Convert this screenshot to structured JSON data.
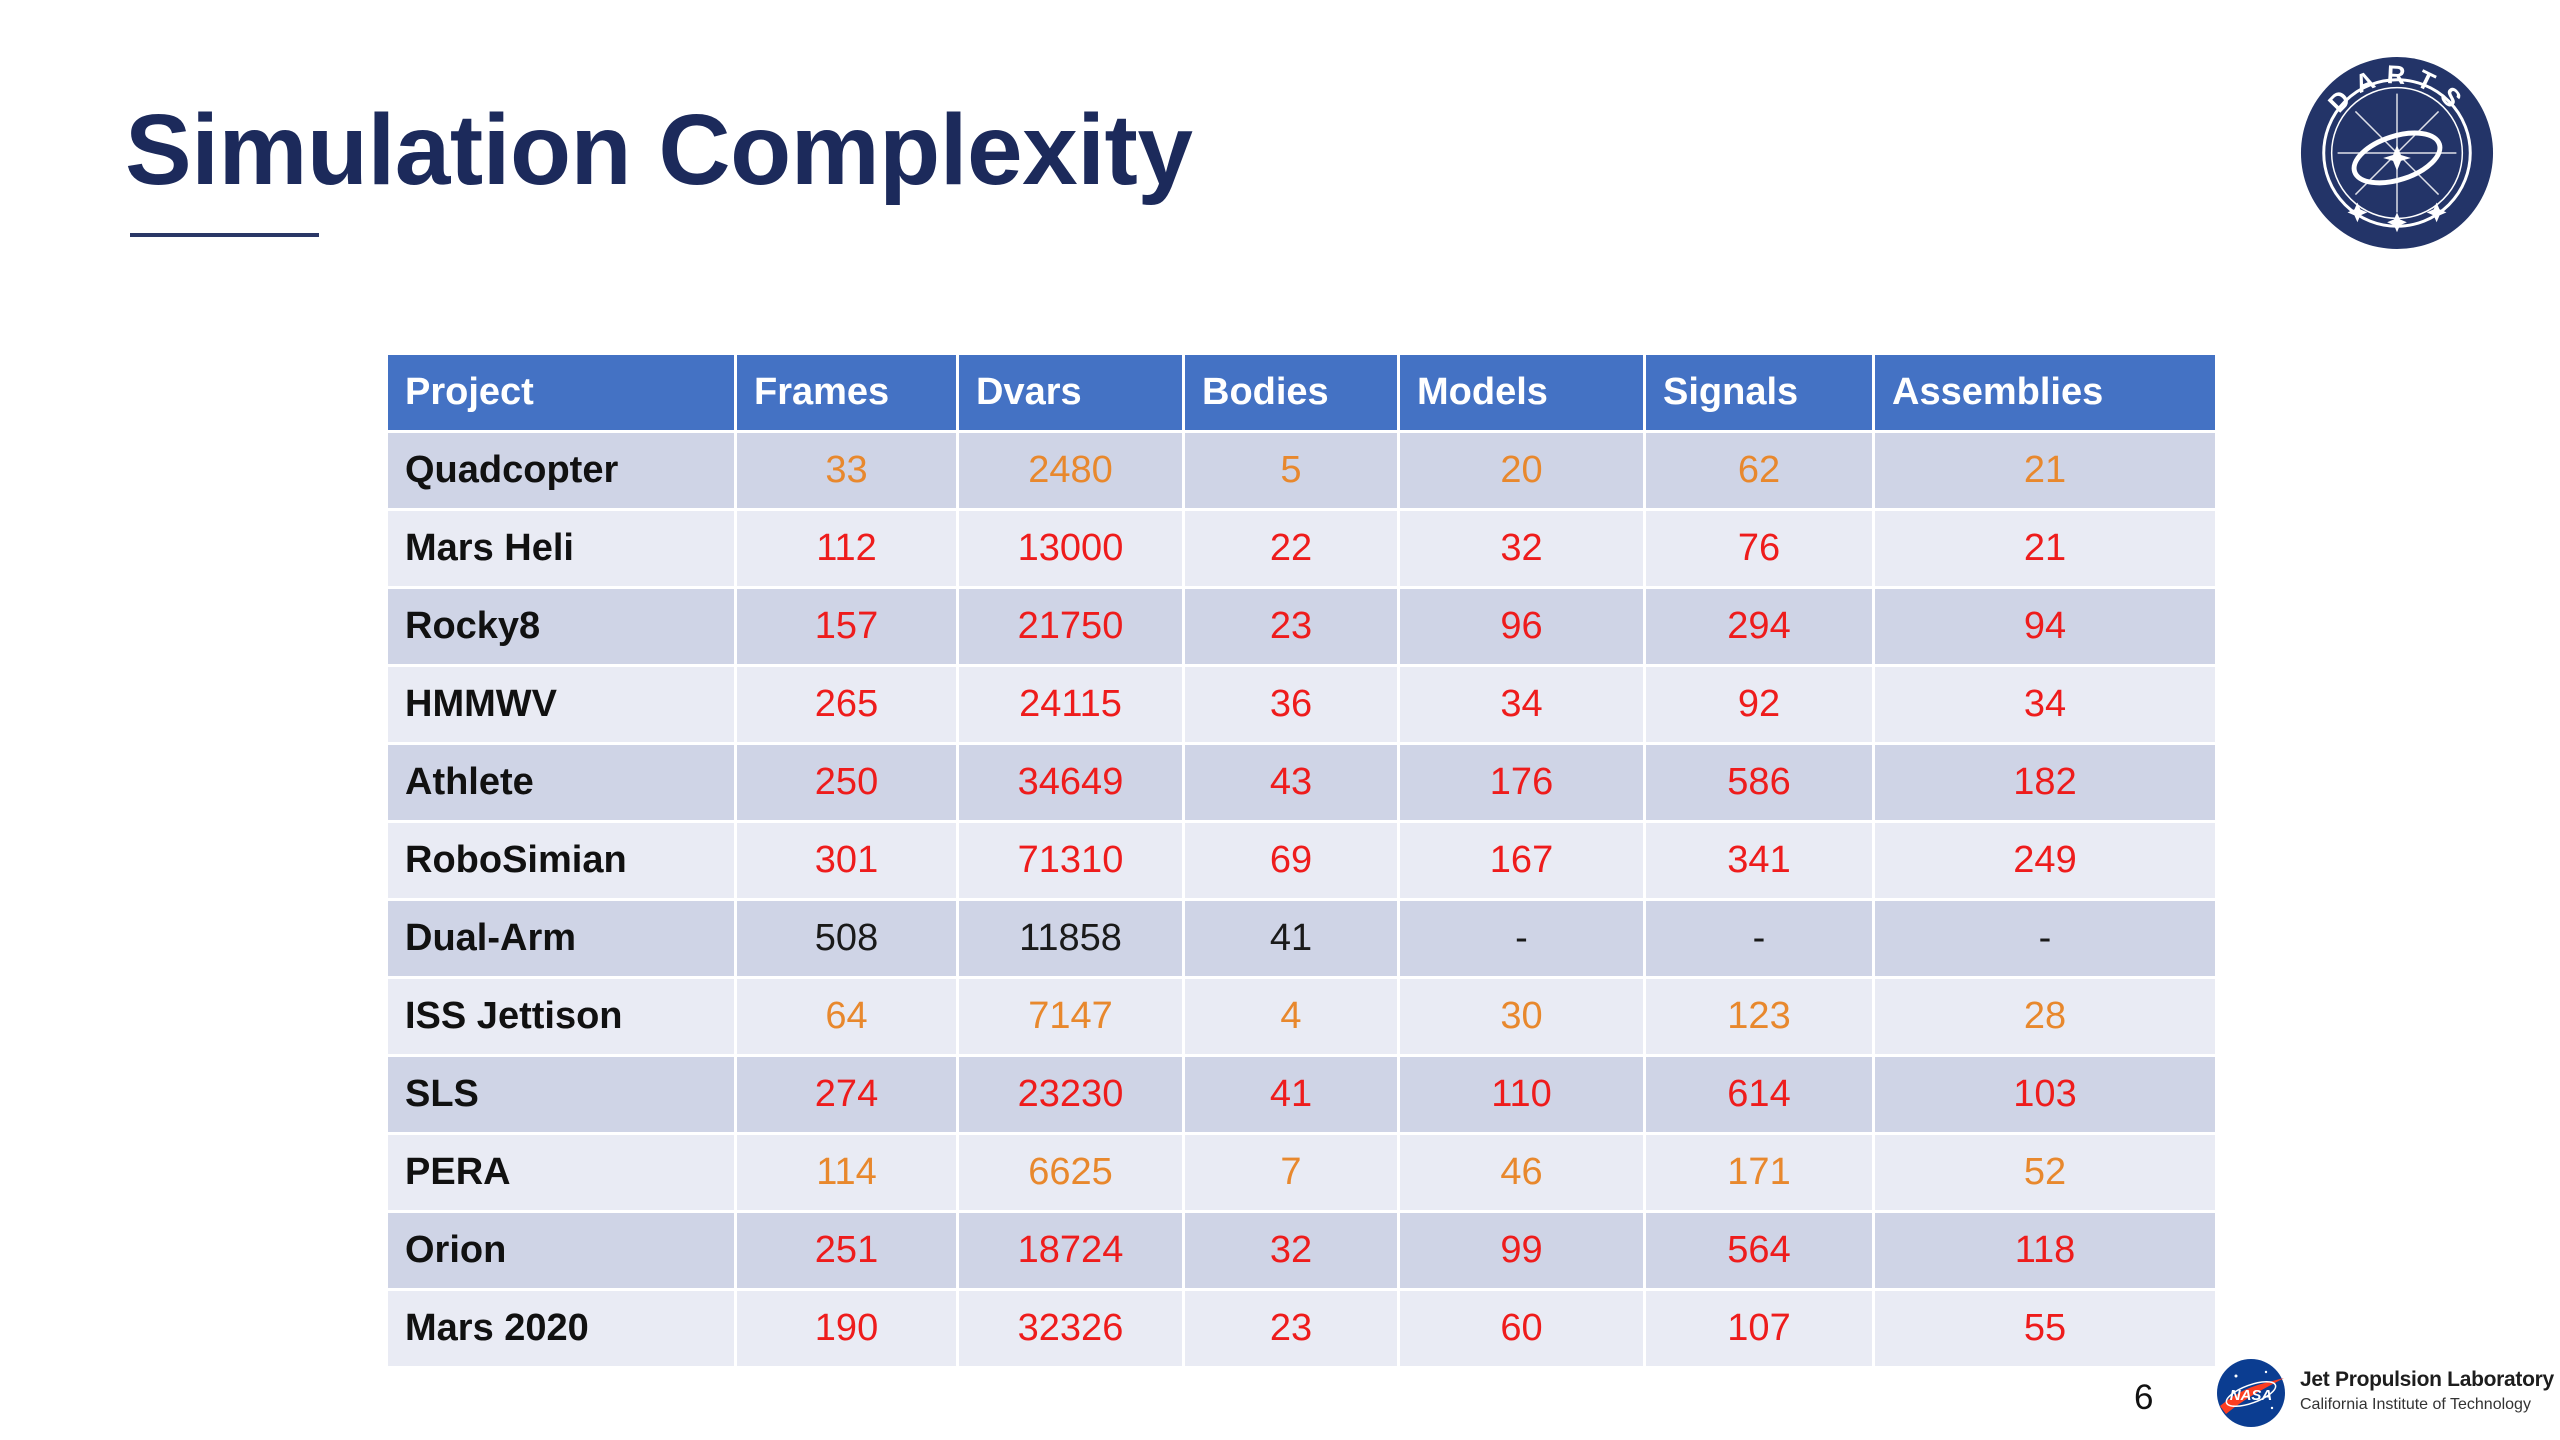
{
  "slide": {
    "title": "Simulation Complexity",
    "page_number": "6"
  },
  "logos": {
    "darts_letters": "DARTS",
    "jpl_name": "Jet Propulsion Laboratory",
    "jpl_sub": "California Institute of Technology",
    "nasa_text": "NASA"
  },
  "colors": {
    "header_bg": "#4472c4",
    "row_odd": "#cfd4e6",
    "row_even": "#e9ebf4",
    "title": "#1c2a5b",
    "orange": "#e8882d",
    "red": "#ee1c1c",
    "black": "#1a1a1a"
  },
  "table": {
    "headers": [
      "Project",
      "Frames",
      "Dvars",
      "Bodies",
      "Models",
      "Signals",
      "Assemblies"
    ],
    "rows": [
      {
        "project": "Quadcopter",
        "color": "orange",
        "values": [
          "33",
          "2480",
          "5",
          "20",
          "62",
          "21"
        ]
      },
      {
        "project": "Mars Heli",
        "color": "red",
        "values": [
          "112",
          "13000",
          "22",
          "32",
          "76",
          "21"
        ]
      },
      {
        "project": "Rocky8",
        "color": "red",
        "values": [
          "157",
          "21750",
          "23",
          "96",
          "294",
          "94"
        ]
      },
      {
        "project": "HMMWV",
        "color": "red",
        "values": [
          "265",
          "24115",
          "36",
          "34",
          "92",
          "34"
        ]
      },
      {
        "project": "Athlete",
        "color": "red",
        "values": [
          "250",
          "34649",
          "43",
          "176",
          "586",
          "182"
        ]
      },
      {
        "project": "RoboSimian",
        "color": "red",
        "values": [
          "301",
          "71310",
          "69",
          "167",
          "341",
          "249"
        ]
      },
      {
        "project": "Dual-Arm",
        "color": "black",
        "values": [
          "508",
          "11858",
          "41",
          "-",
          "-",
          "-"
        ]
      },
      {
        "project": "ISS Jettison",
        "color": "orange",
        "values": [
          "64",
          "7147",
          "4",
          "30",
          "123",
          "28"
        ]
      },
      {
        "project": "SLS",
        "color": "red",
        "values": [
          "274",
          "23230",
          "41",
          "110",
          "614",
          "103"
        ]
      },
      {
        "project": "PERA",
        "color": "orange",
        "values": [
          "114",
          "6625",
          "7",
          "46",
          "171",
          "52"
        ]
      },
      {
        "project": "Orion",
        "color": "red",
        "values": [
          "251",
          "18724",
          "32",
          "99",
          "564",
          "118"
        ]
      },
      {
        "project": "Mars 2020",
        "color": "red",
        "values": [
          "190",
          "32326",
          "23",
          "60",
          "107",
          "55"
        ]
      }
    ]
  }
}
